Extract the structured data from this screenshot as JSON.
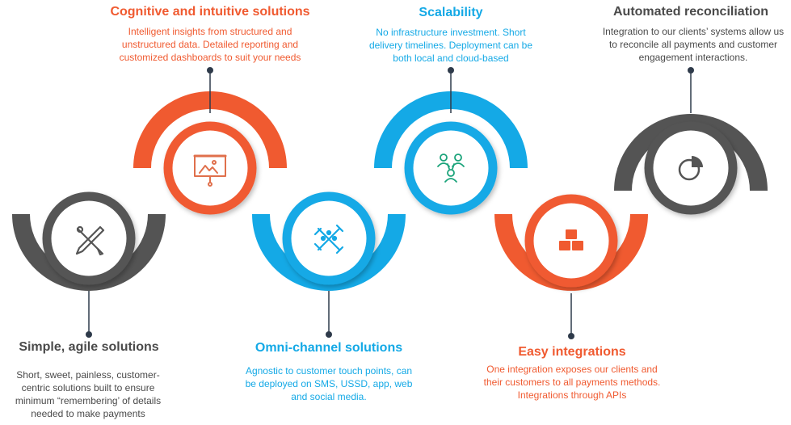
{
  "colors": {
    "orange": "#f05a30",
    "blue": "#14a9e6",
    "gray": "#545454",
    "connector": "#2e3a4a"
  },
  "steps": [
    {
      "id": "simple",
      "title": "Simple, agile solutions",
      "description": "Short, sweet, painless, customer-centric solutions built to ensure minimum “remembering’ of details needed to make payments",
      "color": "gray",
      "icon": "design-tools-icon"
    },
    {
      "id": "cognitive",
      "title": "Cognitive and intuitive solutions",
      "description": "Intelligent insights from structured and unstructured data. Detailed reporting and customized dashboards to suit your needs",
      "color": "orange",
      "icon": "presentation-board-icon"
    },
    {
      "id": "omni",
      "title": "Omni-channel solutions",
      "description": "Agnostic to customer touch points, can be deployed on SMS, USSD, app, web and social media.",
      "color": "blue",
      "icon": "connected-nodes-icon"
    },
    {
      "id": "scalability",
      "title": "Scalability",
      "description": "No infrastructure investment. Short delivery timelines. Deployment can be both local and cloud-based",
      "color": "blue",
      "icon": "users-network-icon"
    },
    {
      "id": "integrations",
      "title": "Easy integrations",
      "description": "One integration exposes our clients and their customers to all payments methods. Integrations through APIs",
      "color": "orange",
      "icon": "stacked-boxes-icon"
    },
    {
      "id": "reconciliation",
      "title": "Automated reconciliation",
      "description": "Integration to our clients’ systems allow us to reconcile all payments and customer engagement interactions.",
      "color": "gray",
      "icon": "pie-chart-icon"
    }
  ]
}
